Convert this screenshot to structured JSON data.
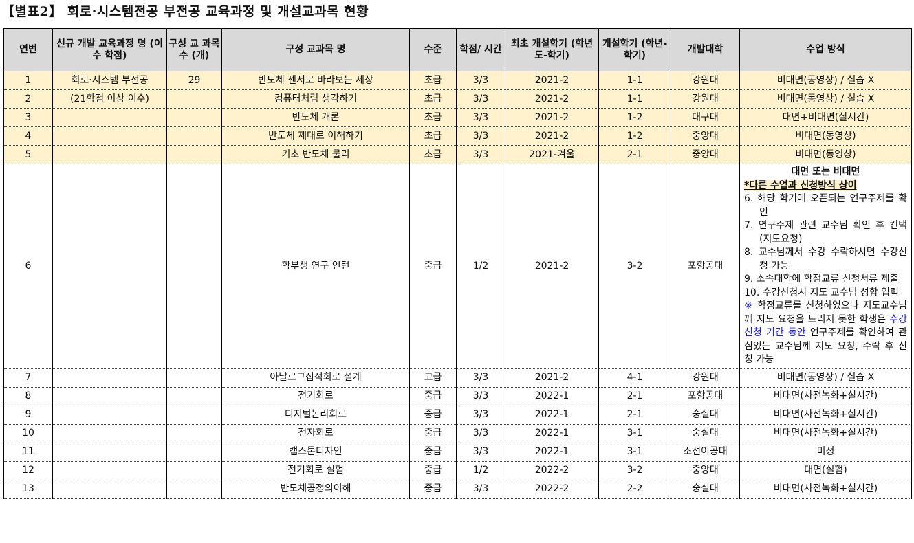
{
  "title": "【별표2】 회로·시스템전공 부전공 교육과정 및 개설교과목 현황",
  "headers": [
    "연번",
    "신규 개발 교육과정 명 (이수 학점)",
    "구성 교 과목 수 (개)",
    "구성 교과목 명",
    "수준",
    "학점/ 시간",
    "최초 개설학기 (학년도-학기)",
    "개설학기 (학년-학기)",
    "개발대학",
    "수업 방식"
  ],
  "rows": [
    {
      "no": "1",
      "program": "회로·시스템 부전공",
      "count": "29",
      "course": "반도체 센서로 바라보는 세상",
      "level": "초급",
      "credit": "3/3",
      "first": "2021-2",
      "sem": "1-1",
      "univ": "강원대",
      "method": "비대면(동영상) / 실습 X"
    },
    {
      "no": "2",
      "program": "(21학점 이상 이수)",
      "count": "",
      "course": "컴퓨터처럼 생각하기",
      "level": "초급",
      "credit": "3/3",
      "first": "2021-2",
      "sem": "1-1",
      "univ": "강원대",
      "method": "비대면(동영상) / 실습 X"
    },
    {
      "no": "3",
      "program": "",
      "count": "",
      "course": "반도체 개론",
      "level": "초급",
      "credit": "3/3",
      "first": "2021-2",
      "sem": "1-2",
      "univ": "대구대",
      "method": "대면+비대면(실시간)"
    },
    {
      "no": "4",
      "program": "",
      "count": "",
      "course": "반도체 제대로 이해하기",
      "level": "초급",
      "credit": "3/3",
      "first": "2021-2",
      "sem": "1-2",
      "univ": "중앙대",
      "method": "비대면(동영상)"
    },
    {
      "no": "5",
      "program": "",
      "count": "",
      "course": "기초 반도체 물리",
      "level": "초급",
      "credit": "3/3",
      "first": "2021-겨울",
      "sem": "2-1",
      "univ": "중앙대",
      "method": "비대면(동영상)"
    },
    {
      "no": "6",
      "program": "",
      "count": "",
      "course": "학부생 연구 인턴",
      "level": "중급",
      "credit": "1/2",
      "first": "2021-2",
      "sem": "3-2",
      "univ": "포항공대",
      "method": ""
    },
    {
      "no": "7",
      "program": "",
      "count": "",
      "course": "아날로그집적회로 설계",
      "level": "고급",
      "credit": "3/3",
      "first": "2021-2",
      "sem": "4-1",
      "univ": "강원대",
      "method": "비대면(동영상) / 실습 X"
    },
    {
      "no": "8",
      "program": "",
      "count": "",
      "course": "전기회로",
      "level": "중급",
      "credit": "3/3",
      "first": "2022-1",
      "sem": "2-1",
      "univ": "포항공대",
      "method": "비대면(사전녹화+실시간)"
    },
    {
      "no": "9",
      "program": "",
      "count": "",
      "course": "디지털논리회로",
      "level": "중급",
      "credit": "3/3",
      "first": "2022-1",
      "sem": "2-1",
      "univ": "숭실대",
      "method": "비대면(사전녹화+실시간)"
    },
    {
      "no": "10",
      "program": "",
      "count": "",
      "course": "전자회로",
      "level": "중급",
      "credit": "3/3",
      "first": "2022-1",
      "sem": "3-1",
      "univ": "숭실대",
      "method": "비대면(사전녹화+실시간)"
    },
    {
      "no": "11",
      "program": "",
      "count": "",
      "course": "캡스톤디자인",
      "level": "중급",
      "credit": "3/3",
      "first": "2022-1",
      "sem": "3-1",
      "univ": "조선이공대",
      "method": "미정"
    },
    {
      "no": "12",
      "program": "",
      "count": "",
      "course": "전기회로 실험",
      "level": "중급",
      "credit": "1/2",
      "first": "2022-2",
      "sem": "3-2",
      "univ": "중앙대",
      "method": "대면(실험)"
    },
    {
      "no": "13",
      "program": "",
      "count": "",
      "course": "반도체공정의이해",
      "level": "중급",
      "credit": "3/3",
      "first": "2022-2",
      "sem": "2-2",
      "univ": "숭실대",
      "method": "비대면(사전녹화+실시간)"
    }
  ],
  "note6": {
    "heading": "대면 또는 비대면",
    "warning": "*다른 수업과 신청방식 상이",
    "steps": [
      "6. 해당 학기에 오픈되는 연구주제를 확인",
      "7. 연구주제 관련 교수님 확인 후 컨택(지도요청)",
      "8. 교수님께서 수강 수락하시면 수강신청 가능",
      "9. 소속대학에 학점교류 신청서류 제출",
      "10. 수강신청시 지도 교수님 성함 입력"
    ],
    "remark_mark": "※",
    "remark_a": " 학점교류를 신청하였으나 지도교수님께 지도 요청을 드리지 못한 학생은 ",
    "remark_blue": "수강신청 기간 동안",
    "remark_b": " 연구주제를 확인하여 관심있는 교수님께 지도 요청, 수락 후 신청 가능"
  },
  "colors": {
    "header_bg": "#d9d9d9",
    "highlight_bg": "#fff2cc",
    "blue_text": "#2323e6"
  }
}
